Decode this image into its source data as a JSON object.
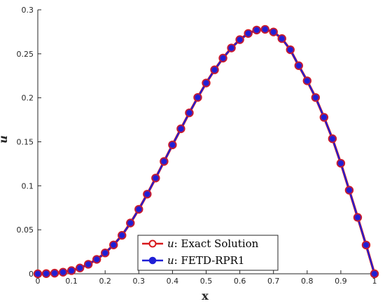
{
  "chart_data": {
    "type": "line",
    "xlabel": "x",
    "ylabel": "u",
    "xlim": [
      0,
      1
    ],
    "ylim": [
      0,
      0.3
    ],
    "xticks": [
      "0",
      "0.1",
      "0.2",
      "0.3",
      "0.4",
      "0.5",
      "0.6",
      "0.7",
      "0.8",
      "0.9",
      "1"
    ],
    "yticks": [
      "0",
      "0.05",
      "0.1",
      "0.15",
      "0.2",
      "0.25",
      "0.3"
    ],
    "grid": false,
    "legend_position": "bottom-center",
    "x": [
      0,
      0.025,
      0.05,
      0.075,
      0.1,
      0.125,
      0.15,
      0.175,
      0.2,
      0.225,
      0.25,
      0.275,
      0.3,
      0.325,
      0.35,
      0.375,
      0.4,
      0.425,
      0.45,
      0.475,
      0.5,
      0.525,
      0.55,
      0.575,
      0.6,
      0.625,
      0.65,
      0.675,
      0.7,
      0.725,
      0.75,
      0.775,
      0.8,
      0.825,
      0.85,
      0.875,
      0.9,
      0.925,
      0.95,
      0.975,
      1
    ],
    "series": [
      {
        "name_var": "u",
        "name": ": Exact Solution",
        "color": "#d7191c",
        "marker": "open-circle",
        "values": [
          0,
          0.0002,
          0.0007,
          0.0018,
          0.0036,
          0.0066,
          0.0108,
          0.0164,
          0.0237,
          0.0328,
          0.0437,
          0.0577,
          0.0733,
          0.0905,
          0.1088,
          0.1277,
          0.1465,
          0.1648,
          0.1829,
          0.2004,
          0.2168,
          0.2318,
          0.2451,
          0.2566,
          0.2661,
          0.2731,
          0.277,
          0.2778,
          0.2748,
          0.2673,
          0.2546,
          0.2365,
          0.2193,
          0.2003,
          0.1778,
          0.1535,
          0.1256,
          0.095,
          0.0641,
          0.0327,
          0
        ]
      },
      {
        "name_var": "u",
        "name": ": FETD-RPR1",
        "color": "#1f1fd6",
        "marker": "filled-circle",
        "values": [
          0,
          0.0002,
          0.0007,
          0.0018,
          0.0036,
          0.0066,
          0.0108,
          0.0164,
          0.0237,
          0.0328,
          0.0437,
          0.0577,
          0.0733,
          0.0905,
          0.1088,
          0.1277,
          0.1465,
          0.1648,
          0.1829,
          0.2004,
          0.2168,
          0.2318,
          0.2451,
          0.2566,
          0.2661,
          0.2731,
          0.277,
          0.2778,
          0.2748,
          0.2673,
          0.2546,
          0.2365,
          0.2193,
          0.2003,
          0.1778,
          0.1535,
          0.1256,
          0.095,
          0.0641,
          0.0327,
          0
        ]
      }
    ]
  }
}
